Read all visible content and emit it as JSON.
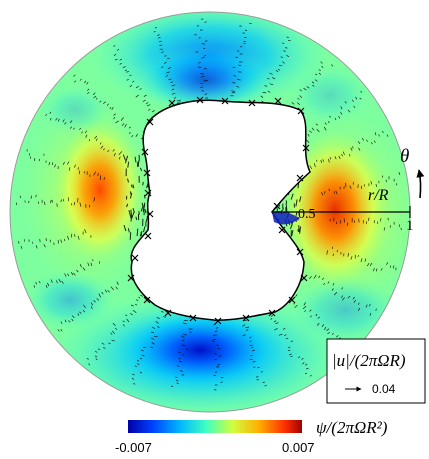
{
  "labels": {
    "theta": "θ",
    "radius": "r/R",
    "tick_one": "1",
    "tick_half": "0.5",
    "velocity_label": "|u|/(2πΩR)",
    "velocity_scale": "0.04",
    "colorbar_label": "ψ/(2πΩR²)",
    "colorbar_min": "-0.007",
    "colorbar_max": "0.007"
  },
  "colors": {
    "colormap": [
      "#0000a8",
      "#0050ff",
      "#00c8ff",
      "#5cffb0",
      "#d8ff40",
      "#ffb000",
      "#ff3000",
      "#b00000"
    ],
    "background": "#ffffff",
    "vectors": "#000000"
  },
  "colorbar_range": [
    -0.007,
    0.007
  ],
  "icons": {
    "vector_arrow": "arrow-right-icon",
    "marker": "cross-icon",
    "theta_arrow": "curved-arrow-icon"
  }
}
